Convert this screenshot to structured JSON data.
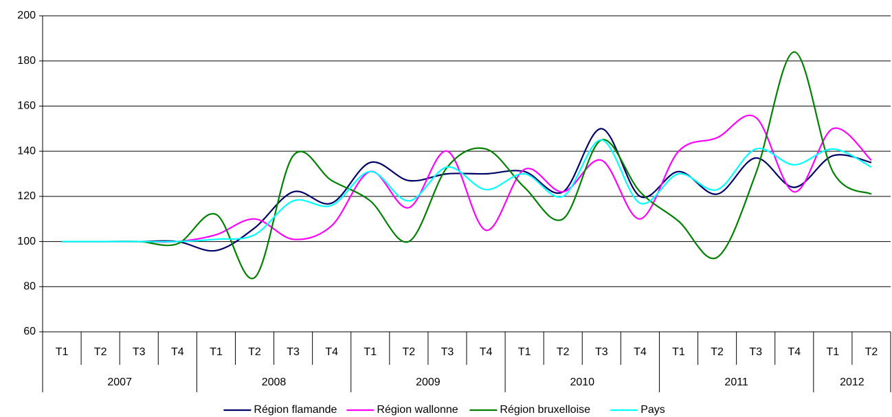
{
  "chart_data": {
    "type": "line",
    "categories": [
      "T1",
      "T2",
      "T3",
      "T4",
      "T1",
      "T2",
      "T3",
      "T4",
      "T1",
      "T2",
      "T3",
      "T4",
      "T1",
      "T2",
      "T3",
      "T4",
      "T1",
      "T2",
      "T3",
      "T4",
      "T1",
      "T2"
    ],
    "years": [
      "2007",
      "2008",
      "2009",
      "2010",
      "2011",
      "2012"
    ],
    "ylim": [
      60,
      200
    ],
    "yticks": [
      60,
      80,
      100,
      120,
      140,
      160,
      180,
      200
    ],
    "grid": true,
    "smooth": true,
    "legend": "bottom",
    "series": [
      {
        "name": "Région flamande",
        "color": "#000066",
        "values": [
          100,
          100,
          100,
          100,
          96,
          106,
          122,
          117,
          135,
          127,
          130,
          130,
          131,
          122,
          150,
          120,
          131,
          121,
          137,
          124,
          138,
          135
        ]
      },
      {
        "name": "Région wallonne",
        "color": "#ff00ff",
        "values": [
          100,
          100,
          100,
          100,
          103,
          110,
          101,
          107,
          131,
          115,
          140,
          105,
          132,
          122,
          136,
          110,
          140,
          146,
          155,
          122,
          150,
          136
        ]
      },
      {
        "name": "Région bruxelloise",
        "color": "#008000",
        "values": [
          100,
          100,
          100,
          99,
          112,
          84,
          138,
          127,
          118,
          100,
          133,
          141,
          124,
          110,
          145,
          122,
          109,
          93,
          130,
          184,
          131,
          121
        ]
      },
      {
        "name": "Pays",
        "color": "#00ffff",
        "values": [
          100,
          100,
          100,
          100,
          101,
          103,
          118,
          116,
          131,
          118,
          133,
          123,
          130,
          120,
          145,
          117,
          130,
          123,
          141,
          134,
          141,
          133
        ]
      }
    ]
  }
}
